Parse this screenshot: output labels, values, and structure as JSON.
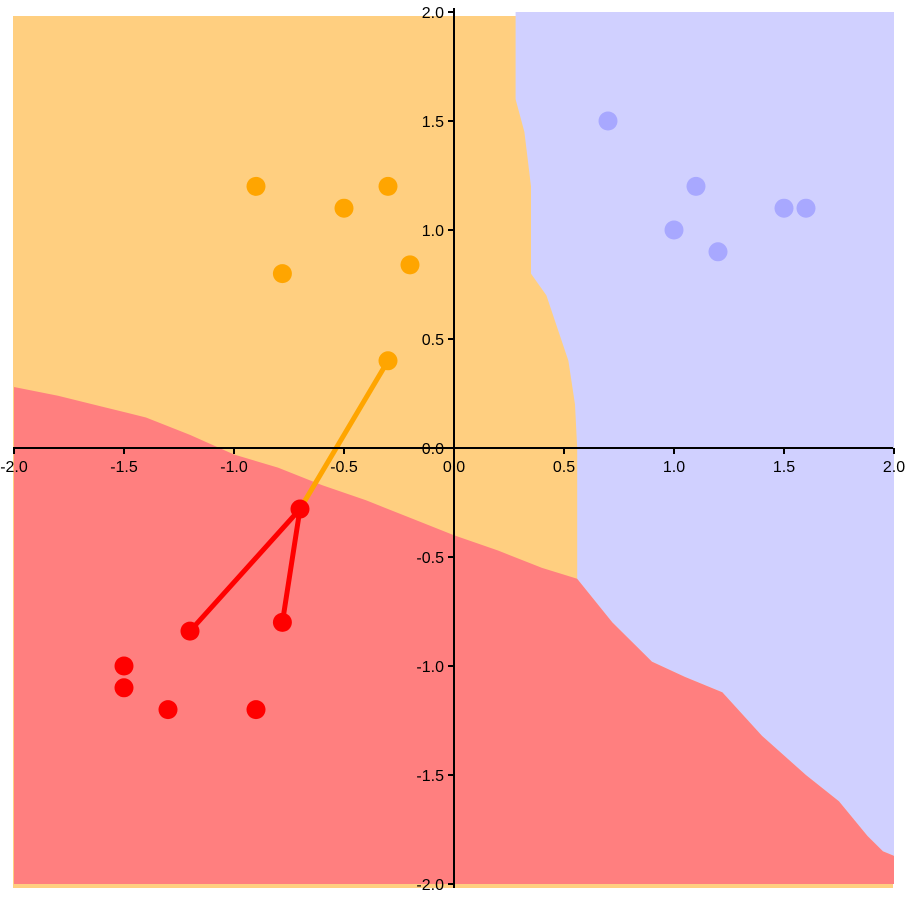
{
  "chart_data": {
    "type": "scatter",
    "xlim": [
      -2.0,
      2.0
    ],
    "ylim": [
      -2.0,
      2.0
    ],
    "grid": false,
    "legend": "none",
    "x_ticks": [
      "-2.0",
      "-1.5",
      "-1.0",
      "-0.5",
      "0.0",
      "0.5",
      "1.0",
      "1.5",
      "2.0"
    ],
    "y_ticks": [
      "2.0",
      "1.5",
      "1.0",
      "0.5",
      "0.0",
      "-0.5",
      "-1.0",
      "-1.5",
      "-2.0"
    ],
    "regions": {
      "red": {
        "color": "#ff7f7f",
        "label_color": "red"
      },
      "orange": {
        "color": "#ffcf80",
        "label_color": "orange"
      },
      "blue": {
        "color": "#d0d0ff",
        "label_color": "blue"
      },
      "red_orange_boundary": [
        [
          -2.0,
          0.28
        ],
        [
          -1.8,
          0.24
        ],
        [
          -1.6,
          0.19
        ],
        [
          -1.4,
          0.14
        ],
        [
          -1.2,
          0.06
        ],
        [
          -1.0,
          -0.03
        ],
        [
          -0.8,
          -0.09
        ],
        [
          -0.6,
          -0.17
        ],
        [
          -0.4,
          -0.24
        ],
        [
          -0.2,
          -0.32
        ],
        [
          0.0,
          -0.4
        ],
        [
          0.2,
          -0.47
        ],
        [
          0.4,
          -0.55
        ],
        [
          0.56,
          -0.6
        ]
      ],
      "orange_blue_boundary": [
        [
          0.28,
          2.0
        ],
        [
          0.28,
          1.6
        ],
        [
          0.32,
          1.45
        ],
        [
          0.35,
          1.2
        ],
        [
          0.35,
          0.8
        ],
        [
          0.42,
          0.7
        ],
        [
          0.47,
          0.55
        ],
        [
          0.52,
          0.4
        ],
        [
          0.55,
          0.2
        ],
        [
          0.56,
          0.0
        ],
        [
          0.56,
          -0.6
        ]
      ],
      "red_blue_boundary": [
        [
          0.56,
          -0.6
        ],
        [
          0.72,
          -0.8
        ],
        [
          0.9,
          -0.98
        ],
        [
          1.05,
          -1.05
        ],
        [
          1.22,
          -1.12
        ],
        [
          1.4,
          -1.32
        ],
        [
          1.6,
          -1.5
        ],
        [
          1.75,
          -1.62
        ],
        [
          1.88,
          -1.78
        ],
        [
          1.95,
          -1.85
        ],
        [
          2.0,
          -1.87
        ]
      ]
    },
    "series": [
      {
        "color": "#ff0000",
        "points": [
          [
            -1.5,
            -1.0
          ],
          [
            -1.5,
            -1.1
          ],
          [
            -1.3,
            -1.2
          ],
          [
            -0.9,
            -1.2
          ],
          [
            -1.2,
            -0.84
          ],
          [
            -0.78,
            -0.8
          ],
          [
            -0.7,
            -0.28
          ]
        ]
      },
      {
        "color": "#ffa500",
        "points": [
          [
            -0.9,
            1.2
          ],
          [
            -0.3,
            1.2
          ],
          [
            -0.5,
            1.1
          ],
          [
            -0.78,
            0.8
          ],
          [
            -0.2,
            0.84
          ],
          [
            -0.3,
            0.4
          ]
        ]
      },
      {
        "color": "#a8a8ff",
        "points": [
          [
            0.7,
            1.5
          ],
          [
            1.1,
            1.2
          ],
          [
            1.5,
            1.1
          ],
          [
            1.6,
            1.1
          ],
          [
            1.0,
            1.0
          ],
          [
            1.2,
            0.9
          ]
        ]
      }
    ],
    "connections": [
      {
        "color": "#ff0000",
        "from": [
          -0.7,
          -0.28
        ],
        "to": [
          -1.2,
          -0.84
        ]
      },
      {
        "color": "#ff0000",
        "from": [
          -0.7,
          -0.28
        ],
        "to": [
          -0.78,
          -0.8
        ]
      },
      {
        "color": "#ffa500",
        "from": [
          -0.7,
          -0.28
        ],
        "to": [
          -0.3,
          0.4
        ]
      }
    ]
  }
}
